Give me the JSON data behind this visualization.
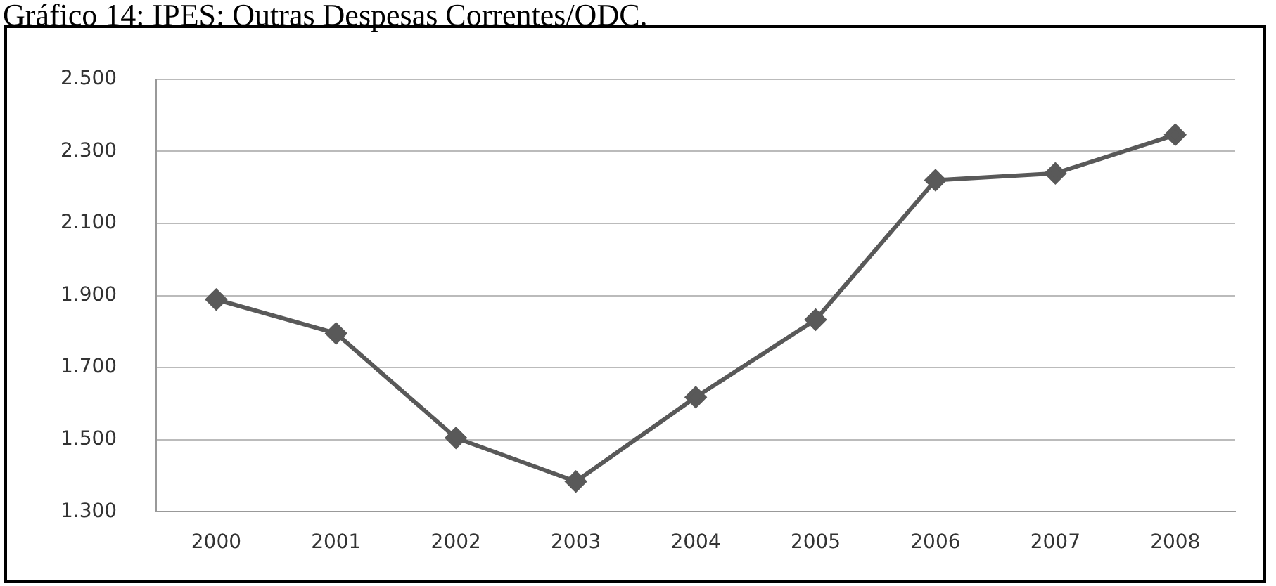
{
  "chart_data": {
    "type": "line",
    "title": "Gráfico 14: IPES: Outras Despesas Correntes/ODC.",
    "categories": [
      "2000",
      "2001",
      "2002",
      "2003",
      "2004",
      "2005",
      "2006",
      "2007",
      "2008"
    ],
    "series": [
      {
        "color": "#595959",
        "values": [
          1889,
          1795,
          1505,
          1384,
          1618,
          1833,
          2220,
          2239,
          2346
        ]
      }
    ],
    "ylim": [
      1300,
      2500
    ],
    "yticks": [
      {
        "value": 1300,
        "label": "1.300"
      },
      {
        "value": 1500,
        "label": "1.500"
      },
      {
        "value": 1700,
        "label": "1.700"
      },
      {
        "value": 1900,
        "label": "1.900"
      },
      {
        "value": 2100,
        "label": "2.100"
      },
      {
        "value": 2300,
        "label": "2.300"
      },
      {
        "value": 2500,
        "label": "2.500"
      }
    ],
    "grid": "y",
    "legend": false,
    "marker": "diamond",
    "line_style": "solid"
  }
}
